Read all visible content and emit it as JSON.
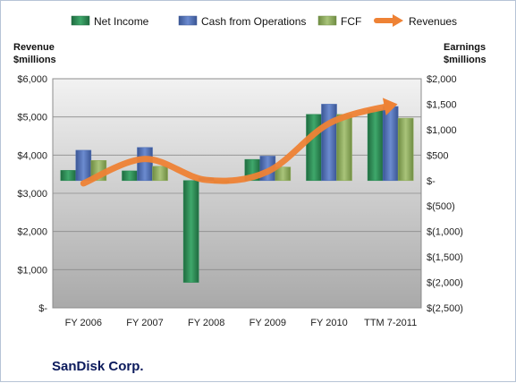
{
  "chart_data": {
    "type": "bar",
    "title": "SanDisk Corp.",
    "categories": [
      "FY 2006",
      "FY 2007",
      "FY 2008",
      "FY 2009",
      "FY 2010",
      "TTM 7-2011"
    ],
    "left_axis": {
      "title_lines": [
        "Revenue",
        "$millions"
      ],
      "ylim": [
        0,
        6000
      ],
      "tick_labels": [
        "$-",
        "$1,000",
        "$2,000",
        "$3,000",
        "$4,000",
        "$5,000",
        "$6,000"
      ],
      "tick_values": [
        0,
        1000,
        2000,
        3000,
        4000,
        5000,
        6000
      ]
    },
    "right_axis": {
      "title_lines": [
        "Earnings",
        "$millions"
      ],
      "ylim": [
        -2500,
        2000
      ],
      "tick_labels": [
        "$(2,500)",
        "$(2,000)",
        "$(1,500)",
        "$(1,000)",
        "$(500)",
        "$-",
        "$500",
        "$1,000",
        "$1,500",
        "$2,000"
      ],
      "tick_values": [
        -2500,
        -2000,
        -1500,
        -1000,
        -500,
        0,
        500,
        1000,
        1500,
        2000
      ]
    },
    "series": [
      {
        "name": "Net Income",
        "type": "bar",
        "axis": "right",
        "color": "#2e8b57",
        "values": [
          200,
          190,
          -2000,
          415,
          1300,
          1390
        ]
      },
      {
        "name": "Cash from Operations",
        "type": "bar",
        "axis": "right",
        "color": "#4f6fb5",
        "values": [
          595,
          650,
          50,
          480,
          1500,
          1455
        ]
      },
      {
        "name": "FCF",
        "type": "bar",
        "axis": "right",
        "color": "#8fac5a",
        "values": [
          395,
          280,
          -50,
          265,
          1300,
          1225
        ]
      },
      {
        "name": "Revenues",
        "type": "line",
        "axis": "left",
        "color": "#ee8235",
        "values": [
          3260,
          3900,
          3350,
          3570,
          4830,
          5300
        ]
      }
    ],
    "grid": true,
    "legend_position": "top"
  }
}
